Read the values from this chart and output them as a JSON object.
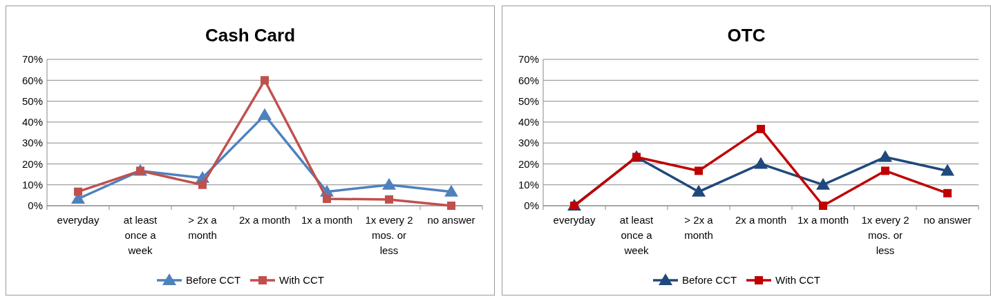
{
  "chart_data": [
    {
      "type": "line",
      "title": "Cash Card",
      "categories": [
        "everyday",
        "at least once a week",
        "> 2x a month",
        "2x a month",
        "1x a month",
        "1x every 2 mos. or less",
        "no answer"
      ],
      "ylim": [
        0,
        70
      ],
      "yticks": [
        {
          "value": 0,
          "label": "0%"
        },
        {
          "value": 10,
          "label": "10%"
        },
        {
          "value": 20,
          "label": "20%"
        },
        {
          "value": 30,
          "label": "30%"
        },
        {
          "value": 40,
          "label": "40%"
        },
        {
          "value": 50,
          "label": "50%"
        },
        {
          "value": 60,
          "label": "60%"
        },
        {
          "value": 70,
          "label": "70%"
        }
      ],
      "grid": "y",
      "legend": "bottom",
      "series": [
        {
          "name": "Before CCT",
          "color": "#4f81bd",
          "marker": "triangle",
          "values": [
            3.3,
            16.7,
            13.3,
            43.3,
            6.7,
            10,
            6.7
          ]
        },
        {
          "name": "With CCT",
          "color": "#c0504d",
          "marker": "square",
          "values": [
            6.7,
            16.7,
            10,
            60,
            3.3,
            3,
            0
          ]
        }
      ]
    },
    {
      "type": "line",
      "title": "OTC",
      "categories": [
        "everyday",
        "at least once a week",
        "> 2x a month",
        "2x a month",
        "1x a month",
        "1x every 2 mos. or less",
        "no answer"
      ],
      "ylim": [
        0,
        70
      ],
      "yticks": [
        {
          "value": 0,
          "label": "0%"
        },
        {
          "value": 10,
          "label": "10%"
        },
        {
          "value": 20,
          "label": "20%"
        },
        {
          "value": 30,
          "label": "30%"
        },
        {
          "value": 40,
          "label": "40%"
        },
        {
          "value": 50,
          "label": "50%"
        },
        {
          "value": 60,
          "label": "60%"
        },
        {
          "value": 70,
          "label": "70%"
        }
      ],
      "grid": "y",
      "legend": "bottom",
      "series": [
        {
          "name": "Before CCT",
          "color": "#1f497d",
          "marker": "triangle",
          "values": [
            0,
            23.3,
            6.7,
            20,
            10,
            23.3,
            16.7
          ]
        },
        {
          "name": "With CCT",
          "color": "#c00000",
          "marker": "square",
          "values": [
            0,
            23.3,
            16.7,
            36.7,
            0,
            16.7,
            6
          ]
        }
      ]
    }
  ]
}
